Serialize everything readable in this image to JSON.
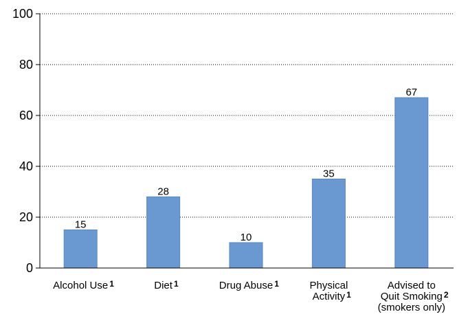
{
  "chart_data": {
    "type": "bar",
    "categories": [
      {
        "lines": [
          "Alcohol Use"
        ],
        "footnote": "1"
      },
      {
        "lines": [
          "Diet"
        ],
        "footnote": "1"
      },
      {
        "lines": [
          "Drug Abuse"
        ],
        "footnote": "1"
      },
      {
        "lines": [
          "Physical",
          "Activity"
        ],
        "footnote": "1"
      },
      {
        "lines": [
          "Advised to",
          "Quit Smoking",
          "(smokers only)"
        ],
        "footnote": "2"
      }
    ],
    "values": [
      15,
      28,
      10,
      35,
      67
    ],
    "data_labels": [
      "15",
      "28",
      "10",
      "35",
      "67"
    ],
    "title": "",
    "xlabel": "",
    "ylabel": "",
    "ylim": [
      0,
      100
    ],
    "yticks": [
      0,
      20,
      40,
      60,
      80,
      100
    ],
    "grid": "horizontal-dotted",
    "bar_color": "#6a98d0",
    "bar_edge_color": "#5a86bf",
    "axis_color": "#000000"
  }
}
